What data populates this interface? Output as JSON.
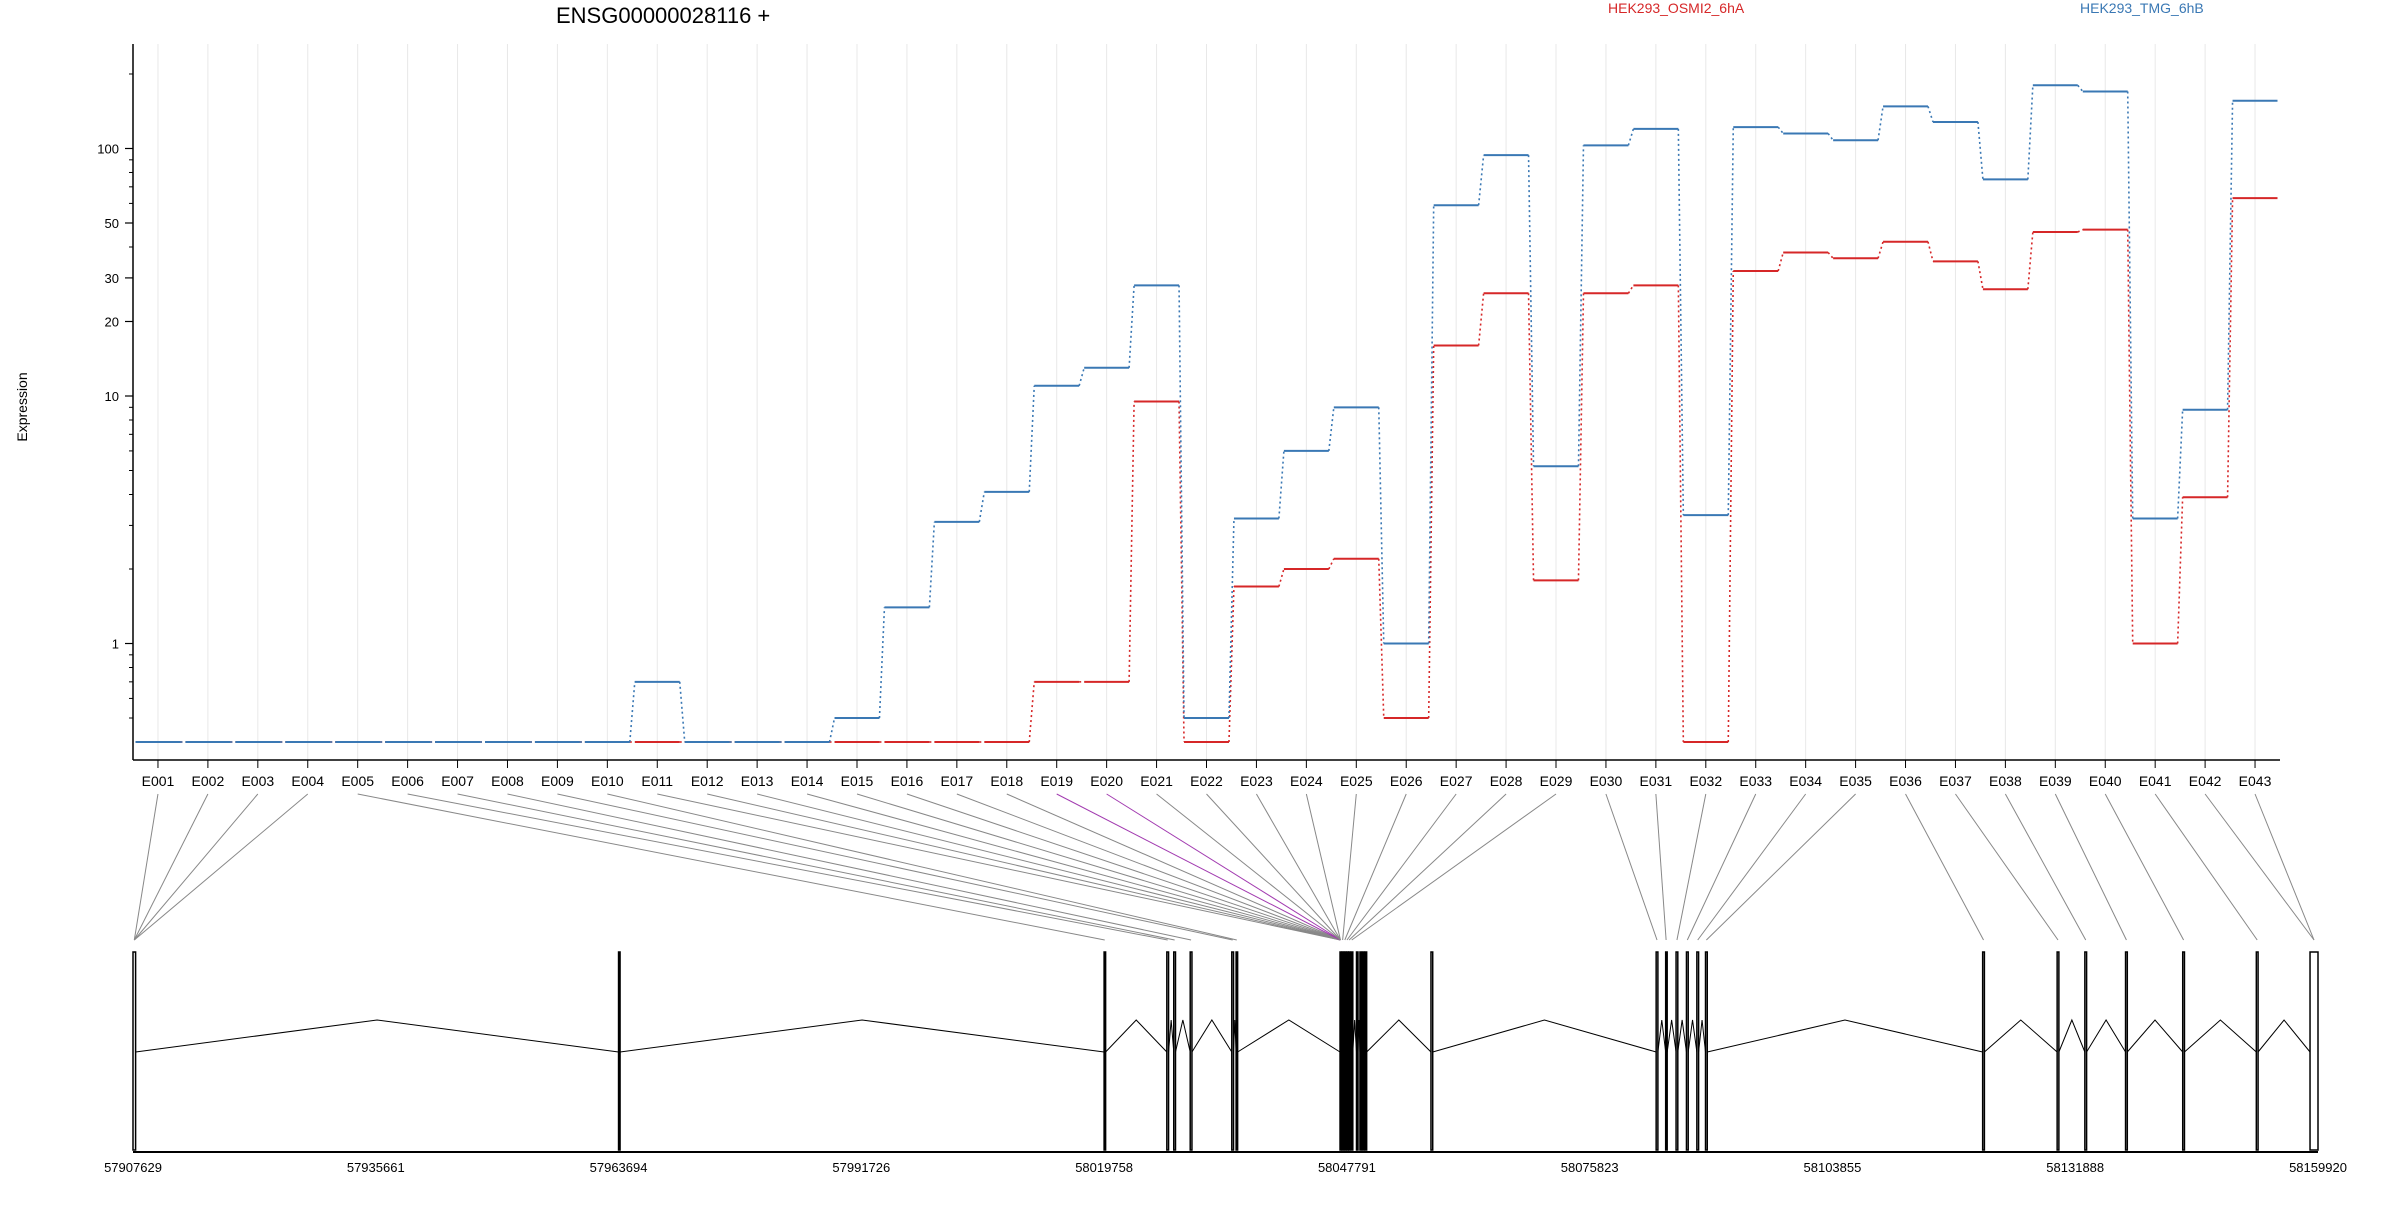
{
  "chart_data": {
    "type": "line",
    "title": "ENSG00000028116 +",
    "ylabel": "Expression",
    "yscale": "log",
    "ylim": [
      0.4,
      250
    ],
    "y_ticks": [
      1,
      10,
      20,
      30,
      50,
      100
    ],
    "grid": "vertical",
    "legend_position": "top",
    "categories": [
      "E001",
      "E002",
      "E003",
      "E004",
      "E005",
      "E006",
      "E007",
      "E008",
      "E009",
      "E010",
      "E011",
      "E012",
      "E013",
      "E014",
      "E015",
      "E016",
      "E017",
      "E018",
      "E019",
      "E020",
      "E021",
      "E022",
      "E023",
      "E024",
      "E025",
      "E026",
      "E027",
      "E028",
      "E029",
      "E030",
      "E031",
      "E032",
      "E033",
      "E034",
      "E035",
      "E036",
      "E037",
      "E038",
      "E039",
      "E040",
      "E041",
      "E042",
      "E043"
    ],
    "highlighted": [
      "E019",
      "E020"
    ],
    "series": [
      {
        "name": "HEK293_OSMI2_6hA",
        "color": "#d62728",
        "values": [
          0.4,
          0.4,
          0.4,
          0.4,
          0.4,
          0.4,
          0.4,
          0.4,
          0.4,
          0.4,
          0.4,
          0.4,
          0.4,
          0.4,
          0.4,
          0.4,
          0.4,
          0.4,
          0.7,
          0.7,
          9.5,
          0.4,
          1.7,
          2.0,
          2.2,
          0.5,
          16,
          26,
          1.8,
          26,
          28,
          0.4,
          32,
          38,
          36,
          42,
          35,
          27,
          46,
          47,
          1.0,
          3.9,
          63
        ]
      },
      {
        "name": "HEK293_TMG_6hB",
        "color": "#3a78b4",
        "values": [
          0.4,
          0.4,
          0.4,
          0.4,
          0.4,
          0.4,
          0.4,
          0.4,
          0.4,
          0.4,
          0.7,
          0.4,
          0.4,
          0.4,
          0.5,
          1.4,
          3.1,
          4.1,
          11,
          13,
          28,
          0.5,
          3.2,
          6.0,
          9.0,
          1.0,
          59,
          94,
          5.2,
          103,
          120,
          3.3,
          122,
          115,
          108,
          148,
          128,
          75,
          180,
          170,
          3.2,
          8.8,
          156
        ]
      }
    ],
    "gene_model": {
      "coordinates": [
        "57907629",
        "57935661",
        "57963694",
        "57991726",
        "58019758",
        "58047791",
        "58075823",
        "58103855",
        "58131888",
        "58159920"
      ],
      "coord_range": [
        57907629,
        58159920
      ],
      "exons": [
        [
          57907629,
          57907929
        ],
        [
          57963694,
          57963696
        ],
        [
          58019758,
          58019900
        ],
        [
          58027000,
          58027200
        ],
        [
          58027800,
          58028000
        ],
        [
          58029700,
          58029900
        ],
        [
          58034500,
          58034700
        ],
        [
          58035000,
          58035150
        ],
        [
          58047000,
          58047100
        ],
        [
          58047250,
          58047350
        ],
        [
          58047500,
          58047600
        ],
        [
          58047750,
          58047850
        ],
        [
          58048000,
          58048100
        ],
        [
          58048300,
          58048400
        ],
        [
          58048900,
          58049000
        ],
        [
          58049300,
          58049400
        ],
        [
          58049600,
          58049700
        ],
        [
          58049900,
          58050000
        ],
        [
          58057500,
          58057700
        ],
        [
          58083500,
          58083700
        ],
        [
          58084600,
          58084700
        ],
        [
          58085800,
          58086000
        ],
        [
          58087000,
          58087200
        ],
        [
          58088200,
          58088400
        ],
        [
          58089200,
          58089400
        ],
        [
          58121200,
          58121400
        ],
        [
          58129800,
          58130000
        ],
        [
          58133000,
          58133200
        ],
        [
          58137700,
          58137900
        ],
        [
          58144300,
          58144500
        ],
        [
          58152800,
          58153000
        ],
        [
          58159000,
          58159920
        ]
      ]
    }
  }
}
